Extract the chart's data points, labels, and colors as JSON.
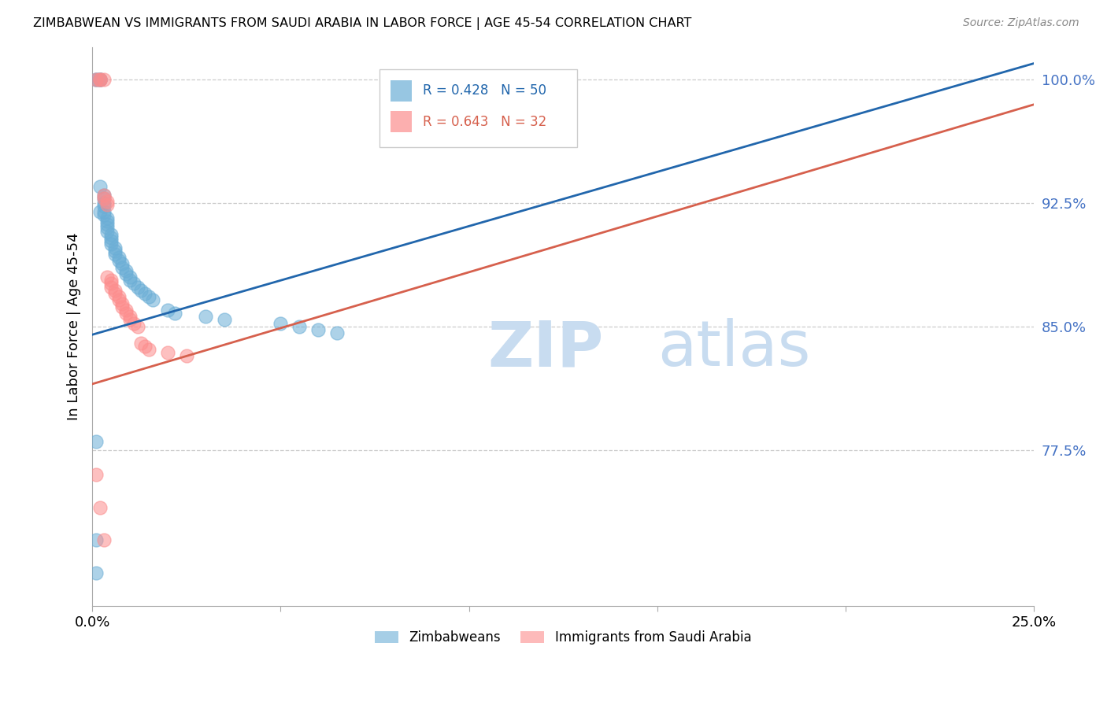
{
  "title": "ZIMBABWEAN VS IMMIGRANTS FROM SAUDI ARABIA IN LABOR FORCE | AGE 45-54 CORRELATION CHART",
  "source": "Source: ZipAtlas.com",
  "ylabel": "In Labor Force | Age 45-54",
  "xlim": [
    0.0,
    0.25
  ],
  "ylim": [
    0.68,
    1.02
  ],
  "yticks": [
    0.775,
    0.85,
    0.925,
    1.0
  ],
  "ytick_labels": [
    "77.5%",
    "85.0%",
    "92.5%",
    "100.0%"
  ],
  "xticks": [
    0.0,
    0.05,
    0.1,
    0.15,
    0.2,
    0.25
  ],
  "xtick_labels": [
    "0.0%",
    "",
    "",
    "",
    "",
    "25.0%"
  ],
  "blue_R": 0.428,
  "blue_N": 50,
  "pink_R": 0.643,
  "pink_N": 32,
  "blue_color": "#6baed6",
  "pink_color": "#fc8d8d",
  "blue_line_color": "#2166ac",
  "pink_line_color": "#d6604d",
  "legend_blue_label": "Zimbabweans",
  "legend_pink_label": "Immigrants from Saudi Arabia",
  "blue_x": [
    0.001,
    0.001,
    0.002,
    0.002,
    0.002,
    0.002,
    0.002,
    0.003,
    0.003,
    0.003,
    0.003,
    0.003,
    0.003,
    0.004,
    0.004,
    0.004,
    0.004,
    0.004,
    0.005,
    0.005,
    0.005,
    0.005,
    0.006,
    0.006,
    0.006,
    0.007,
    0.007,
    0.008,
    0.008,
    0.009,
    0.009,
    0.01,
    0.01,
    0.011,
    0.012,
    0.013,
    0.014,
    0.015,
    0.016,
    0.02,
    0.022,
    0.03,
    0.035,
    0.05,
    0.055,
    0.06,
    0.065,
    0.001,
    0.001,
    0.001
  ],
  "blue_y": [
    1.0,
    1.0,
    1.0,
    1.0,
    1.0,
    0.935,
    0.92,
    0.93,
    0.928,
    0.925,
    0.923,
    0.92,
    0.918,
    0.916,
    0.914,
    0.912,
    0.91,
    0.908,
    0.906,
    0.904,
    0.902,
    0.9,
    0.898,
    0.896,
    0.894,
    0.892,
    0.89,
    0.888,
    0.886,
    0.884,
    0.882,
    0.88,
    0.878,
    0.876,
    0.874,
    0.872,
    0.87,
    0.868,
    0.866,
    0.86,
    0.858,
    0.856,
    0.854,
    0.852,
    0.85,
    0.848,
    0.846,
    0.78,
    0.72,
    0.7
  ],
  "pink_x": [
    0.001,
    0.002,
    0.002,
    0.003,
    0.003,
    0.003,
    0.004,
    0.004,
    0.004,
    0.005,
    0.005,
    0.005,
    0.006,
    0.006,
    0.007,
    0.007,
    0.008,
    0.008,
    0.009,
    0.009,
    0.01,
    0.01,
    0.011,
    0.012,
    0.013,
    0.014,
    0.015,
    0.001,
    0.002,
    0.003,
    0.02,
    0.025
  ],
  "pink_y": [
    1.0,
    1.0,
    1.0,
    1.0,
    0.93,
    0.928,
    0.926,
    0.924,
    0.88,
    0.878,
    0.876,
    0.874,
    0.872,
    0.87,
    0.868,
    0.866,
    0.864,
    0.862,
    0.86,
    0.858,
    0.856,
    0.854,
    0.852,
    0.85,
    0.84,
    0.838,
    0.836,
    0.76,
    0.74,
    0.72,
    0.834,
    0.832
  ],
  "blue_line_x0": 0.0,
  "blue_line_y0": 0.845,
  "blue_line_x1": 0.25,
  "blue_line_y1": 1.01,
  "pink_line_x0": 0.0,
  "pink_line_y0": 0.815,
  "pink_line_x1": 0.25,
  "pink_line_y1": 0.985
}
